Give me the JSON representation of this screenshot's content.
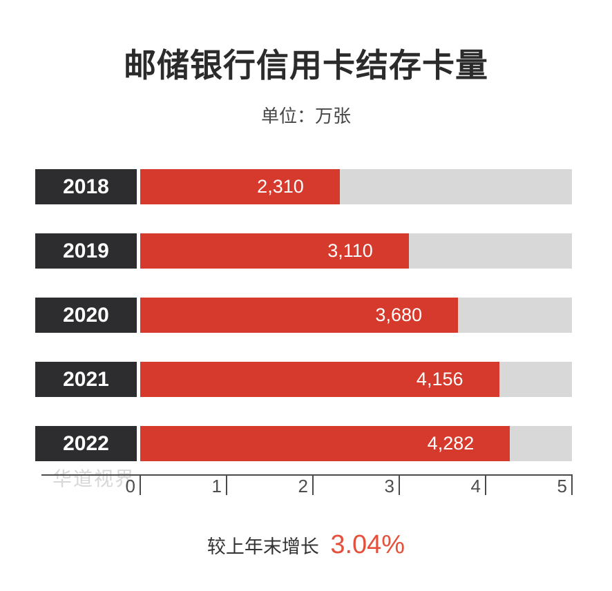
{
  "title": "邮储银行信用卡结存卡量",
  "subtitle": "单位：万张",
  "watermark": "华道视界",
  "footer": {
    "label": "较上年末增长",
    "value": "3.04%"
  },
  "colors": {
    "background": "#ffffff",
    "bar": "#d63a2c",
    "track": "#d8d8d8",
    "year_box": "#2d2c2e",
    "year_text": "#ffffff",
    "value_text": "#ffffff",
    "axis": "#4a4a4a",
    "axis_text": "#4d4d4d",
    "title_text": "#2b2b2b",
    "subtitle_text": "#464646",
    "footer_text": "#333333",
    "footer_value": "#e5503c",
    "watermark_text": "#d7d7d7"
  },
  "chart_data": {
    "type": "bar",
    "orientation": "horizontal",
    "title": "邮储银行信用卡结存卡量",
    "unit_label": "单位：万张",
    "categories": [
      "2018",
      "2019",
      "2020",
      "2021",
      "2022"
    ],
    "values": [
      2310,
      3110,
      3680,
      4156,
      4282
    ],
    "value_labels": [
      "2,310",
      "3,110",
      "3,680",
      "4,156",
      "4,282"
    ],
    "xlim": [
      0,
      5000
    ],
    "x_ticks": [
      {
        "label": "0",
        "value": 0
      },
      {
        "label": "1",
        "value": 1000
      },
      {
        "label": "2",
        "value": 2000
      },
      {
        "label": "3",
        "value": 3000
      },
      {
        "label": "4",
        "value": 4000
      },
      {
        "label": "5",
        "value": 5000
      }
    ],
    "grid": false,
    "legend_position": "none",
    "annotation": "较上年末增长 3.04%"
  }
}
